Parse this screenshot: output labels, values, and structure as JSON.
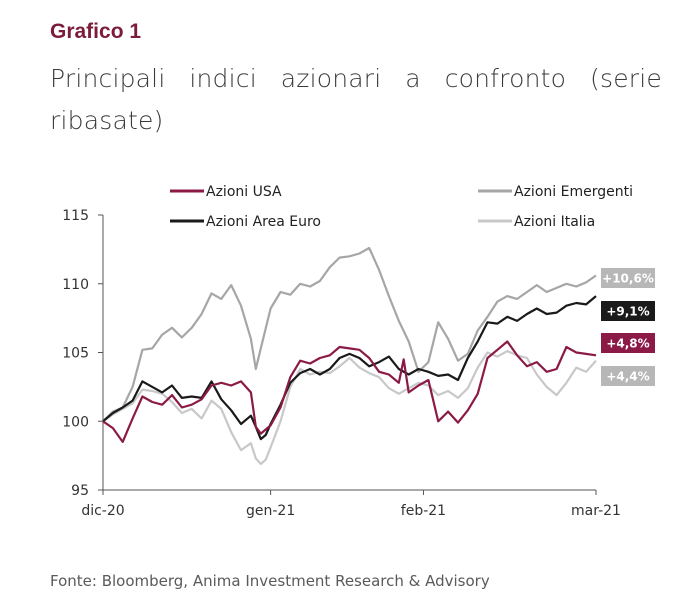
{
  "header": {
    "figure_label": "Grafico 1",
    "title": "Principali indici azionari a confronto (serie ribasate)"
  },
  "source": "Fonte: Bloomberg, Anima Investment Research & Advisory",
  "chart_data": {
    "type": "line",
    "title": "Principali indici azionari a confronto (serie ribasate)",
    "xlabel": "",
    "ylabel": "",
    "ylim": [
      95,
      115
    ],
    "yticks": [
      95,
      100,
      105,
      110,
      115
    ],
    "xticks": [
      {
        "label": "dic-20",
        "x": 0
      },
      {
        "label": "gen-21",
        "x": 34
      },
      {
        "label": "feb-21",
        "x": 65
      },
      {
        "label": "mar-21",
        "x": 100
      }
    ],
    "xrange": [
      0,
      100
    ],
    "legend": {
      "placement": "top"
    },
    "grid": false,
    "series": [
      {
        "name": "Azioni USA",
        "color": "#8b1a46",
        "end_label": "+4,8%",
        "label_bg": "#8b1a46",
        "points": [
          [
            0,
            100
          ],
          [
            2,
            99.5
          ],
          [
            4,
            98.5
          ],
          [
            6,
            100.2
          ],
          [
            8,
            101.8
          ],
          [
            10,
            101.4
          ],
          [
            12,
            101.2
          ],
          [
            14,
            101.9
          ],
          [
            16,
            101.0
          ],
          [
            18,
            101.2
          ],
          [
            20,
            101.6
          ],
          [
            22,
            102.6
          ],
          [
            24,
            102.8
          ],
          [
            26,
            102.6
          ],
          [
            28,
            102.9
          ],
          [
            30,
            102.1
          ],
          [
            31,
            99.6
          ],
          [
            32,
            99.1
          ],
          [
            33,
            99.4
          ],
          [
            34,
            99.7
          ],
          [
            36,
            101.0
          ],
          [
            38,
            103.2
          ],
          [
            40,
            104.4
          ],
          [
            42,
            104.2
          ],
          [
            44,
            104.6
          ],
          [
            46,
            104.8
          ],
          [
            48,
            105.4
          ],
          [
            50,
            105.3
          ],
          [
            52,
            105.2
          ],
          [
            54,
            104.6
          ],
          [
            56,
            103.6
          ],
          [
            58,
            103.4
          ],
          [
            60,
            102.8
          ],
          [
            61,
            104.5
          ],
          [
            62,
            102.1
          ],
          [
            64,
            102.6
          ],
          [
            66,
            103.0
          ],
          [
            68,
            100.0
          ],
          [
            70,
            100.7
          ],
          [
            72,
            99.9
          ],
          [
            74,
            100.8
          ],
          [
            76,
            102.0
          ],
          [
            78,
            104.6
          ],
          [
            80,
            105.2
          ],
          [
            82,
            105.8
          ],
          [
            84,
            104.8
          ],
          [
            86,
            104.0
          ],
          [
            88,
            104.3
          ],
          [
            90,
            103.6
          ],
          [
            92,
            103.8
          ],
          [
            94,
            105.4
          ],
          [
            96,
            105.0
          ],
          [
            98,
            104.9
          ],
          [
            100,
            104.8
          ]
        ]
      },
      {
        "name": "Azioni Area Euro",
        "color": "#1a1a1a",
        "end_label": "+9,1%",
        "label_bg": "#1a1a1a",
        "points": [
          [
            0,
            100
          ],
          [
            2,
            100.6
          ],
          [
            4,
            101.0
          ],
          [
            6,
            101.5
          ],
          [
            8,
            102.9
          ],
          [
            10,
            102.5
          ],
          [
            12,
            102.1
          ],
          [
            14,
            102.6
          ],
          [
            16,
            101.7
          ],
          [
            18,
            101.8
          ],
          [
            20,
            101.7
          ],
          [
            22,
            102.9
          ],
          [
            24,
            101.6
          ],
          [
            26,
            100.8
          ],
          [
            28,
            99.8
          ],
          [
            30,
            100.4
          ],
          [
            31,
            99.6
          ],
          [
            32,
            98.7
          ],
          [
            33,
            99.0
          ],
          [
            34,
            99.8
          ],
          [
            36,
            101.2
          ],
          [
            38,
            102.8
          ],
          [
            40,
            103.5
          ],
          [
            42,
            103.8
          ],
          [
            44,
            103.4
          ],
          [
            46,
            103.8
          ],
          [
            48,
            104.6
          ],
          [
            50,
            104.9
          ],
          [
            52,
            104.6
          ],
          [
            54,
            104.0
          ],
          [
            56,
            104.3
          ],
          [
            58,
            104.7
          ],
          [
            60,
            103.8
          ],
          [
            62,
            103.4
          ],
          [
            64,
            103.8
          ],
          [
            66,
            103.6
          ],
          [
            68,
            103.3
          ],
          [
            70,
            103.4
          ],
          [
            72,
            103.0
          ],
          [
            74,
            104.6
          ],
          [
            76,
            105.8
          ],
          [
            78,
            107.2
          ],
          [
            80,
            107.1
          ],
          [
            82,
            107.6
          ],
          [
            84,
            107.3
          ],
          [
            86,
            107.8
          ],
          [
            88,
            108.2
          ],
          [
            90,
            107.8
          ],
          [
            92,
            107.9
          ],
          [
            94,
            108.4
          ],
          [
            96,
            108.6
          ],
          [
            98,
            108.5
          ],
          [
            100,
            109.1
          ]
        ]
      },
      {
        "name": "Azioni Emergenti",
        "color": "#a6a6a6",
        "end_label": "+10,6%",
        "label_bg": "#b7b7b7",
        "points": [
          [
            0,
            100
          ],
          [
            2,
            100.7
          ],
          [
            4,
            101.0
          ],
          [
            6,
            102.5
          ],
          [
            8,
            105.2
          ],
          [
            10,
            105.3
          ],
          [
            12,
            106.3
          ],
          [
            14,
            106.8
          ],
          [
            16,
            106.1
          ],
          [
            18,
            106.8
          ],
          [
            20,
            107.8
          ],
          [
            22,
            109.3
          ],
          [
            24,
            108.9
          ],
          [
            26,
            109.9
          ],
          [
            28,
            108.4
          ],
          [
            30,
            106.0
          ],
          [
            31,
            103.8
          ],
          [
            32,
            105.3
          ],
          [
            34,
            108.2
          ],
          [
            36,
            109.4
          ],
          [
            38,
            109.2
          ],
          [
            40,
            110.0
          ],
          [
            42,
            109.8
          ],
          [
            44,
            110.2
          ],
          [
            46,
            111.2
          ],
          [
            48,
            111.9
          ],
          [
            50,
            112.0
          ],
          [
            52,
            112.2
          ],
          [
            54,
            112.6
          ],
          [
            56,
            111.0
          ],
          [
            58,
            109.1
          ],
          [
            60,
            107.3
          ],
          [
            62,
            105.8
          ],
          [
            64,
            103.6
          ],
          [
            66,
            104.3
          ],
          [
            68,
            107.2
          ],
          [
            70,
            106.0
          ],
          [
            72,
            104.4
          ],
          [
            74,
            104.9
          ],
          [
            76,
            106.6
          ],
          [
            78,
            107.6
          ],
          [
            80,
            108.7
          ],
          [
            82,
            109.1
          ],
          [
            84,
            108.9
          ],
          [
            86,
            109.4
          ],
          [
            88,
            109.9
          ],
          [
            90,
            109.4
          ],
          [
            92,
            109.7
          ],
          [
            94,
            110.0
          ],
          [
            96,
            109.8
          ],
          [
            98,
            110.1
          ],
          [
            100,
            110.6
          ]
        ]
      },
      {
        "name": "Azioni Italia",
        "color": "#c8c8c8",
        "end_label": "+4,4%",
        "label_bg": "#b7b7b7",
        "points": [
          [
            0,
            100
          ],
          [
            2,
            100.5
          ],
          [
            4,
            100.9
          ],
          [
            6,
            101.3
          ],
          [
            8,
            102.3
          ],
          [
            10,
            102.2
          ],
          [
            12,
            102.0
          ],
          [
            14,
            101.4
          ],
          [
            16,
            100.6
          ],
          [
            18,
            100.9
          ],
          [
            20,
            100.2
          ],
          [
            22,
            101.5
          ],
          [
            24,
            100.9
          ],
          [
            26,
            99.2
          ],
          [
            28,
            97.9
          ],
          [
            30,
            98.4
          ],
          [
            31,
            97.3
          ],
          [
            32,
            96.9
          ],
          [
            33,
            97.2
          ],
          [
            34,
            98.1
          ],
          [
            36,
            100.0
          ],
          [
            38,
            102.5
          ],
          [
            40,
            103.8
          ],
          [
            42,
            103.4
          ],
          [
            44,
            103.6
          ],
          [
            46,
            103.5
          ],
          [
            48,
            104.0
          ],
          [
            50,
            104.6
          ],
          [
            52,
            103.9
          ],
          [
            54,
            103.5
          ],
          [
            56,
            103.2
          ],
          [
            58,
            102.4
          ],
          [
            60,
            102.0
          ],
          [
            62,
            102.4
          ],
          [
            64,
            102.8
          ],
          [
            66,
            102.6
          ],
          [
            68,
            101.9
          ],
          [
            70,
            102.2
          ],
          [
            72,
            101.7
          ],
          [
            74,
            102.4
          ],
          [
            76,
            103.9
          ],
          [
            78,
            105.0
          ],
          [
            80,
            104.7
          ],
          [
            82,
            105.1
          ],
          [
            84,
            104.8
          ],
          [
            86,
            104.6
          ],
          [
            88,
            103.4
          ],
          [
            90,
            102.5
          ],
          [
            92,
            101.9
          ],
          [
            94,
            102.8
          ],
          [
            96,
            103.9
          ],
          [
            98,
            103.6
          ],
          [
            100,
            104.4
          ]
        ]
      }
    ]
  }
}
